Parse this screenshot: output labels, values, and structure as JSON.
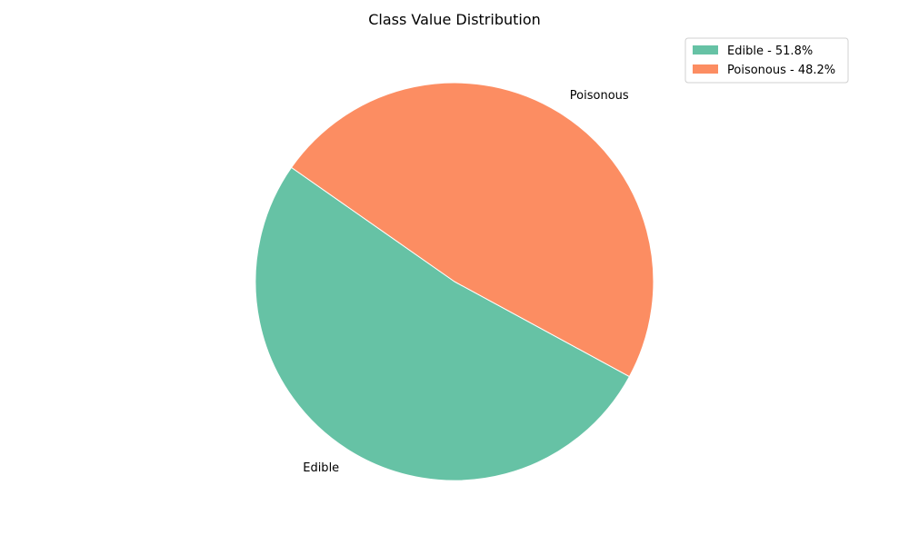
{
  "chart_data": {
    "type": "pie",
    "title": "Class Value Distribution",
    "categories": [
      "Edible",
      "Poisonous"
    ],
    "values": [
      51.8,
      48.2
    ],
    "unit": "%",
    "colors": [
      "#66c2a5",
      "#fc8d62"
    ],
    "legend": {
      "placement": "top-right",
      "entries": [
        "Edible - 51.8%",
        "Poisonous - 48.2%"
      ]
    },
    "start_angle_deg": 145,
    "direction": "counterclockwise",
    "grid": false
  }
}
